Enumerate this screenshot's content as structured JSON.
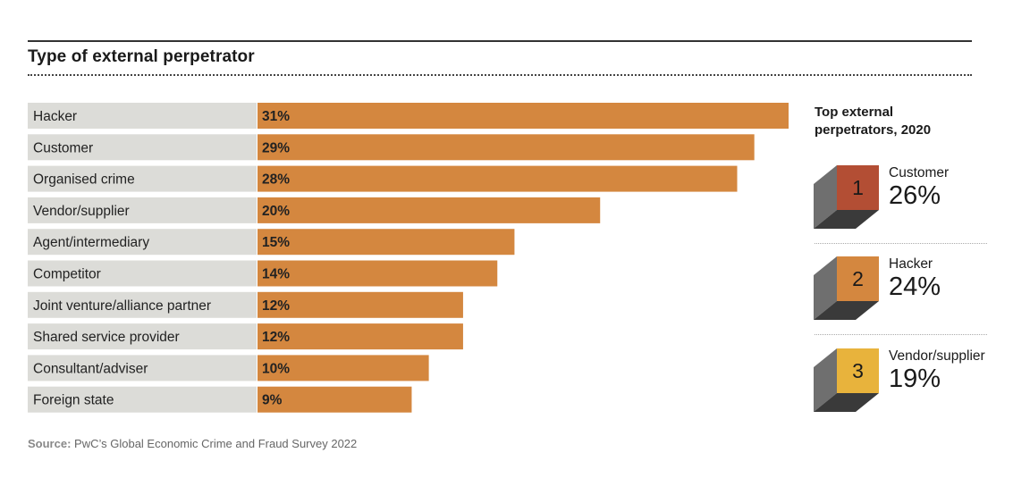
{
  "title": "Type of external perpetrator",
  "chart_data": {
    "type": "bar",
    "orientation": "horizontal",
    "title": "Type of external perpetrator",
    "categories": [
      "Hacker",
      "Customer",
      "Organised crime",
      "Vendor/supplier",
      "Agent/intermediary",
      "Competitor",
      "Joint venture/alliance partner",
      "Shared service provider",
      "Consultant/adviser",
      "Foreign state"
    ],
    "values": [
      31,
      29,
      28,
      20,
      15,
      14,
      12,
      12,
      10,
      9
    ],
    "value_labels": [
      "31%",
      "29%",
      "28%",
      "20%",
      "15%",
      "14%",
      "12%",
      "12%",
      "10%",
      "9%"
    ],
    "unit": "%",
    "xlim": [
      0,
      31
    ],
    "colors": {
      "bar": "#d4873f",
      "label_bg": "#dcdcd8"
    }
  },
  "sidebar": {
    "title": "Top external perpetrators, 2020",
    "ranks": [
      {
        "rank": "1",
        "name": "Customer",
        "value": "26%",
        "color": "#b34e34"
      },
      {
        "rank": "2",
        "name": "Hacker",
        "value": "24%",
        "color": "#d4873f"
      },
      {
        "rank": "3",
        "name": "Vendor/supplier",
        "value": "19%",
        "color": "#e8b33c"
      }
    ]
  },
  "source": {
    "label": "Source:",
    "text": "PwC’s Global Economic Crime and Fraud Survey 2022"
  }
}
